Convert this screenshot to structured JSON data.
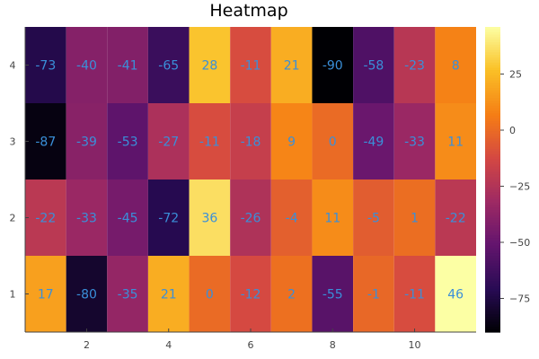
{
  "chart_data": {
    "type": "heatmap",
    "title": "Heatmap",
    "x": [
      1,
      2,
      3,
      4,
      5,
      6,
      7,
      8,
      9,
      10,
      11
    ],
    "y": [
      1,
      2,
      3,
      4
    ],
    "x_ticks": [
      2,
      4,
      6,
      8,
      10
    ],
    "y_ticks": [
      1,
      2,
      3,
      4
    ],
    "xlim": [
      0.5,
      11.5
    ],
    "ylim": [
      0.5,
      4.5
    ],
    "values": [
      [
        17,
        -80,
        -35,
        21,
        0,
        -12,
        2,
        -55,
        -1,
        -11,
        46
      ],
      [
        -22,
        -33,
        -45,
        -72,
        36,
        -26,
        -4,
        11,
        -5,
        1,
        -22
      ],
      [
        -87,
        -39,
        -53,
        -27,
        -11,
        -18,
        9,
        0,
        -49,
        -33,
        11
      ],
      [
        -73,
        -40,
        -41,
        -65,
        28,
        -11,
        21,
        -90,
        -58,
        -23,
        8
      ]
    ],
    "colorbar": {
      "min": -90,
      "max": 46,
      "ticks": [
        -75,
        -50,
        -25,
        0,
        25
      ],
      "colormap": "inferno"
    },
    "label_color": "#3a8fd9",
    "grid": false,
    "legend": "colorbar-right"
  }
}
